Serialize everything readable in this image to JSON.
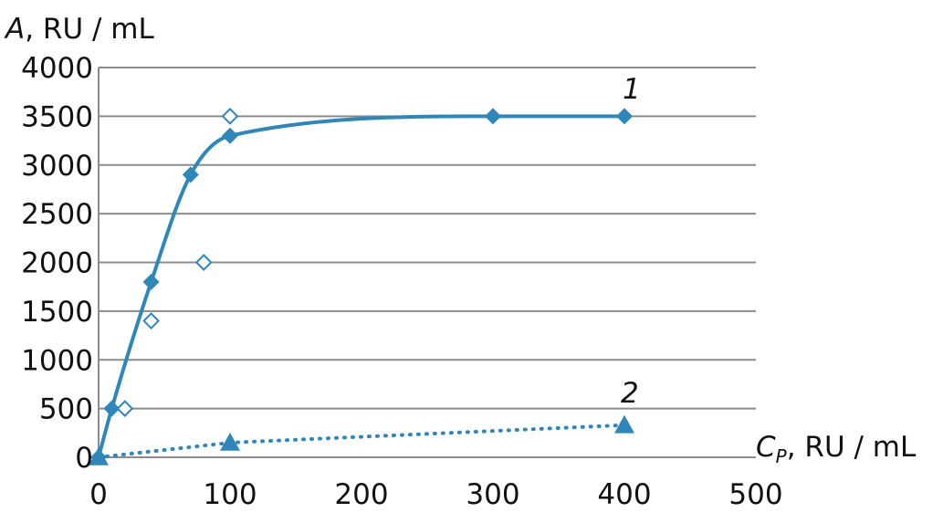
{
  "chart_data": {
    "type": "scatter",
    "ylabel": {
      "symbol": "A",
      "units": ", RU / mL"
    },
    "xlabel": {
      "symbol": "C",
      "subscript": "P",
      "units": ", RU / mL"
    },
    "xlim": [
      0,
      500
    ],
    "ylim": [
      0,
      4000
    ],
    "x_ticks": [
      0,
      100,
      200,
      300,
      400,
      500
    ],
    "y_ticks": [
      0,
      500,
      1000,
      1500,
      2000,
      2500,
      3000,
      3500,
      4000
    ],
    "grid": {
      "horizontal": true,
      "vertical": false
    },
    "colors": {
      "series": "#2f86b8",
      "grid": "#8c8c8c",
      "axis": "#8c8c8c"
    },
    "series": [
      {
        "label": "1",
        "marker": "filled-diamond",
        "line": "solid-smooth",
        "points": [
          {
            "x": 0,
            "y": 0
          },
          {
            "x": 10,
            "y": 500
          },
          {
            "x": 40,
            "y": 1800
          },
          {
            "x": 70,
            "y": 2900
          },
          {
            "x": 100,
            "y": 3300
          },
          {
            "x": 300,
            "y": 3500
          },
          {
            "x": 400,
            "y": 3500
          }
        ]
      },
      {
        "marker": "open-diamond",
        "line": "none",
        "points": [
          {
            "x": 20,
            "y": 500
          },
          {
            "x": 40,
            "y": 1400
          },
          {
            "x": 80,
            "y": 2000
          },
          {
            "x": 100,
            "y": 3500
          }
        ]
      },
      {
        "label": "2",
        "marker": "filled-triangle",
        "line": "dotted",
        "points": [
          {
            "x": 0,
            "y": 0
          },
          {
            "x": 100,
            "y": 150
          },
          {
            "x": 400,
            "y": 330
          }
        ]
      }
    ]
  }
}
